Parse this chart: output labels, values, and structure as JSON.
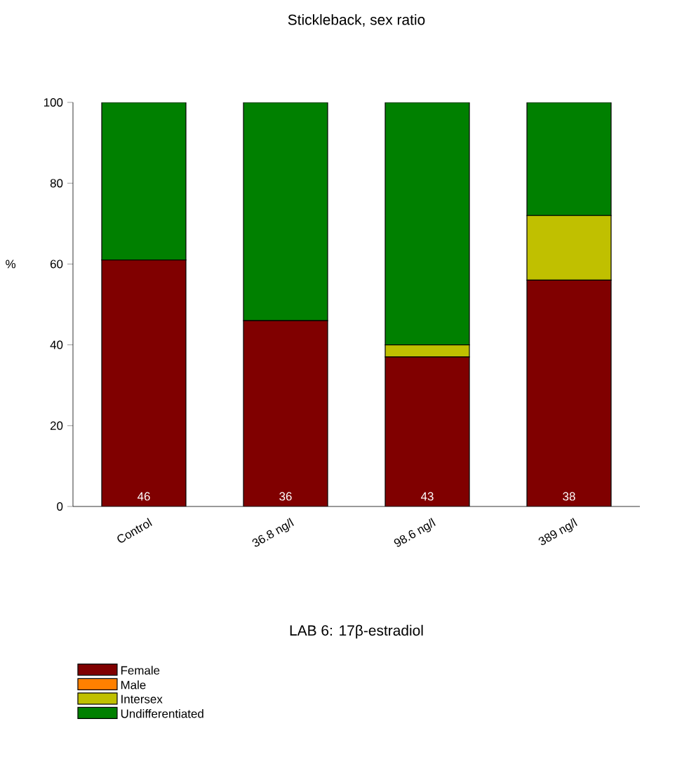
{
  "chart_data": {
    "type": "bar",
    "stacked": true,
    "title": "Stickleback, sex ratio",
    "ylabel": "%",
    "categories": [
      "Control",
      "36.8 ng/l",
      "98.6 ng/l",
      "389 ng/l"
    ],
    "series": [
      {
        "name": "Female",
        "color": "#800000",
        "values": [
          61,
          46,
          37,
          56
        ]
      },
      {
        "name": "Male",
        "color": "#ff8000",
        "values": [
          0,
          0,
          0,
          0
        ]
      },
      {
        "name": "Intersex",
        "color": "#c0c000",
        "values": [
          0,
          0,
          3,
          16
        ]
      },
      {
        "name": "Undifferentiated",
        "color": "#008000",
        "values": [
          39,
          54,
          60,
          28
        ]
      }
    ],
    "ylim": [
      0,
      100
    ],
    "yticks": [
      0,
      20,
      40,
      60,
      80,
      100
    ],
    "grid": false,
    "legend": "bottom left",
    "annotations": [
      "46",
      "36",
      "43",
      "38",
      "LAB 6: 17β-estradiol"
    ]
  }
}
